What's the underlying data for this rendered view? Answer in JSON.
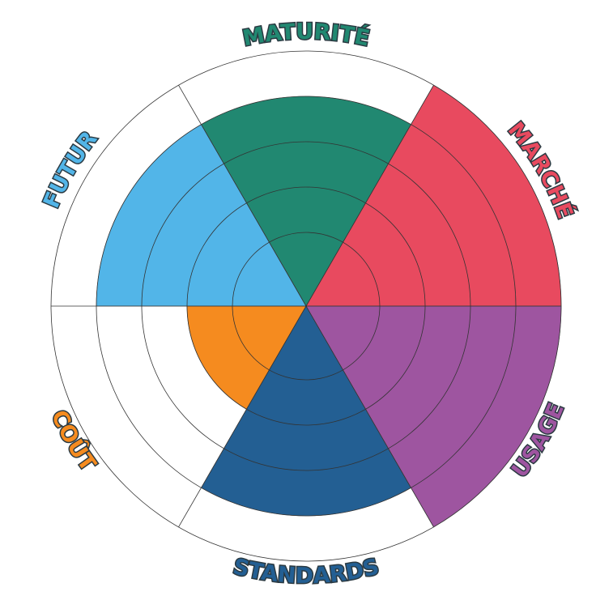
{
  "chart_data": {
    "type": "polar_area",
    "categories": [
      "MARCHÉ",
      "MATURITÉ",
      "FUTUR",
      "COÛT",
      "STANDARDS",
      "USAGE"
    ],
    "values": [
      5,
      4,
      4,
      2,
      4,
      5
    ],
    "colors": [
      "#e84a5f",
      "#218871",
      "#52b5e8",
      "#f58b1f",
      "#235f93",
      "#9e55a0"
    ],
    "rlim": [
      0,
      5
    ],
    "rticks": [
      1,
      2,
      3,
      4,
      5
    ],
    "grid": true
  }
}
